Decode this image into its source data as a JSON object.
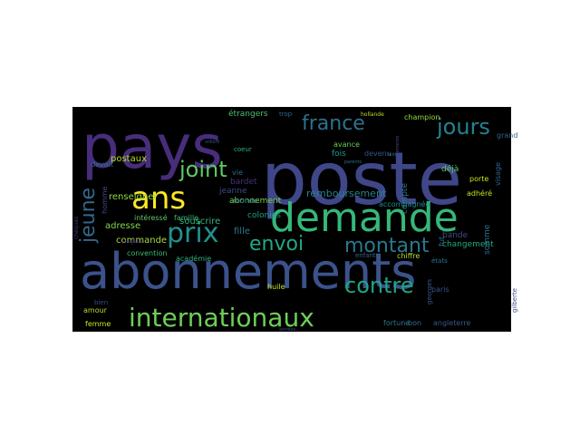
{
  "wordcloud": {
    "background": "#000000",
    "words": [
      {
        "text": "poste",
        "color": "#3f4789"
      },
      {
        "text": "abonnements",
        "color": "#3b528b"
      },
      {
        "text": "pays",
        "color": "#472d7b"
      },
      {
        "text": "demande",
        "color": "#35b779"
      },
      {
        "text": "ans",
        "color": "#fde725"
      },
      {
        "text": "internationaux",
        "color": "#6ece58"
      },
      {
        "text": "contre",
        "color": "#20a486"
      },
      {
        "text": "france",
        "color": "#2c728e"
      },
      {
        "text": "jours",
        "color": "#26828e"
      },
      {
        "text": "joint",
        "color": "#5ec962"
      },
      {
        "text": "prix",
        "color": "#21918c"
      },
      {
        "text": "envoi",
        "color": "#22a884"
      },
      {
        "text": "montant",
        "color": "#2a788e"
      },
      {
        "text": "jeune",
        "color": "#31688e"
      },
      {
        "text": "remboursement",
        "color": "#26828e"
      },
      {
        "text": "renseigner",
        "color": "#95d840"
      },
      {
        "text": "postaux",
        "color": "#b5de2b"
      },
      {
        "text": "abonnement",
        "color": "#7ad151"
      },
      {
        "text": "étrangers",
        "color": "#4ac16d"
      },
      {
        "text": "souscrire",
        "color": "#2fb47c"
      },
      {
        "text": "colonies",
        "color": "#1fa088"
      },
      {
        "text": "commande",
        "color": "#a8db34"
      },
      {
        "text": "adresse",
        "color": "#84d44b"
      },
      {
        "text": "intéressé",
        "color": "#5ec962"
      },
      {
        "text": "famille",
        "color": "#3bbb75"
      },
      {
        "text": "fille",
        "color": "#2a788e"
      },
      {
        "text": "jeanne",
        "color": "#3e4a89"
      },
      {
        "text": "bardet",
        "color": "#46327e"
      },
      {
        "text": "vie",
        "color": "#31688e"
      },
      {
        "text": "fois",
        "color": "#1f9a8a"
      },
      {
        "text": "compte",
        "color": "#2a788e"
      },
      {
        "text": "déjà",
        "color": "#5ec962"
      },
      {
        "text": "porte",
        "color": "#d0e11c"
      },
      {
        "text": "devenu",
        "color": "#3b528b"
      },
      {
        "text": "avance",
        "color": "#6ece58"
      },
      {
        "text": "champion",
        "color": "#95d840"
      },
      {
        "text": "visage",
        "color": "#33638d"
      },
      {
        "text": "adhéré",
        "color": "#cae11f"
      },
      {
        "text": "accompagnée",
        "color": "#228c8d"
      },
      {
        "text": "bande",
        "color": "#3e4c8a"
      },
      {
        "text": "changement",
        "color": "#23a983"
      },
      {
        "text": "somme",
        "color": "#2d708e"
      },
      {
        "text": "huile",
        "color": "#cae11f"
      },
      {
        "text": "fut",
        "color": "#2d708e"
      },
      {
        "text": "fortune",
        "color": "#2a788e"
      },
      {
        "text": "angleterre",
        "color": "#375a8c"
      },
      {
        "text": "paris",
        "color": "#3b528b"
      },
      {
        "text": "chiffre",
        "color": "#b5de2b"
      },
      {
        "text": "monde",
        "color": "#2a788e"
      },
      {
        "text": "académie",
        "color": "#2fb47c"
      },
      {
        "text": "convention",
        "color": "#3bbb75"
      },
      {
        "text": "amour",
        "color": "#b5de2b"
      },
      {
        "text": "femme",
        "color": "#cae11f"
      },
      {
        "text": "homme",
        "color": "#3e4989"
      },
      {
        "text": "bon",
        "color": "#2c728e"
      },
      {
        "text": "grand",
        "color": "#33638d"
      },
      {
        "text": "devait",
        "color": "#2c728e"
      },
      {
        "text": "coeur",
        "color": "#2fb47c"
      },
      {
        "text": "trop",
        "color": "#31688e"
      },
      {
        "text": "enfants",
        "color": "#33638d"
      },
      {
        "text": "états",
        "color": "#2a788e"
      },
      {
        "text": "gilberte",
        "color": "#3e4a89"
      },
      {
        "text": "chèques",
        "color": "#443a83"
      },
      {
        "text": "georges",
        "color": "#375a8c"
      },
      {
        "text": "hollande",
        "color": "#c2df23"
      },
      {
        "text": "villiers",
        "color": "#3b528b"
      },
      {
        "text": "bien",
        "color": "#3e4a89"
      },
      {
        "text": "anglais",
        "color": "#46327e"
      },
      {
        "text": "années",
        "color": "#3e4a89"
      },
      {
        "text": "loin",
        "color": "#2a788e"
      },
      {
        "text": "parents",
        "color": "#2c728e"
      },
      {
        "text": "règlements",
        "color": "#3e4a89"
      }
    ]
  }
}
